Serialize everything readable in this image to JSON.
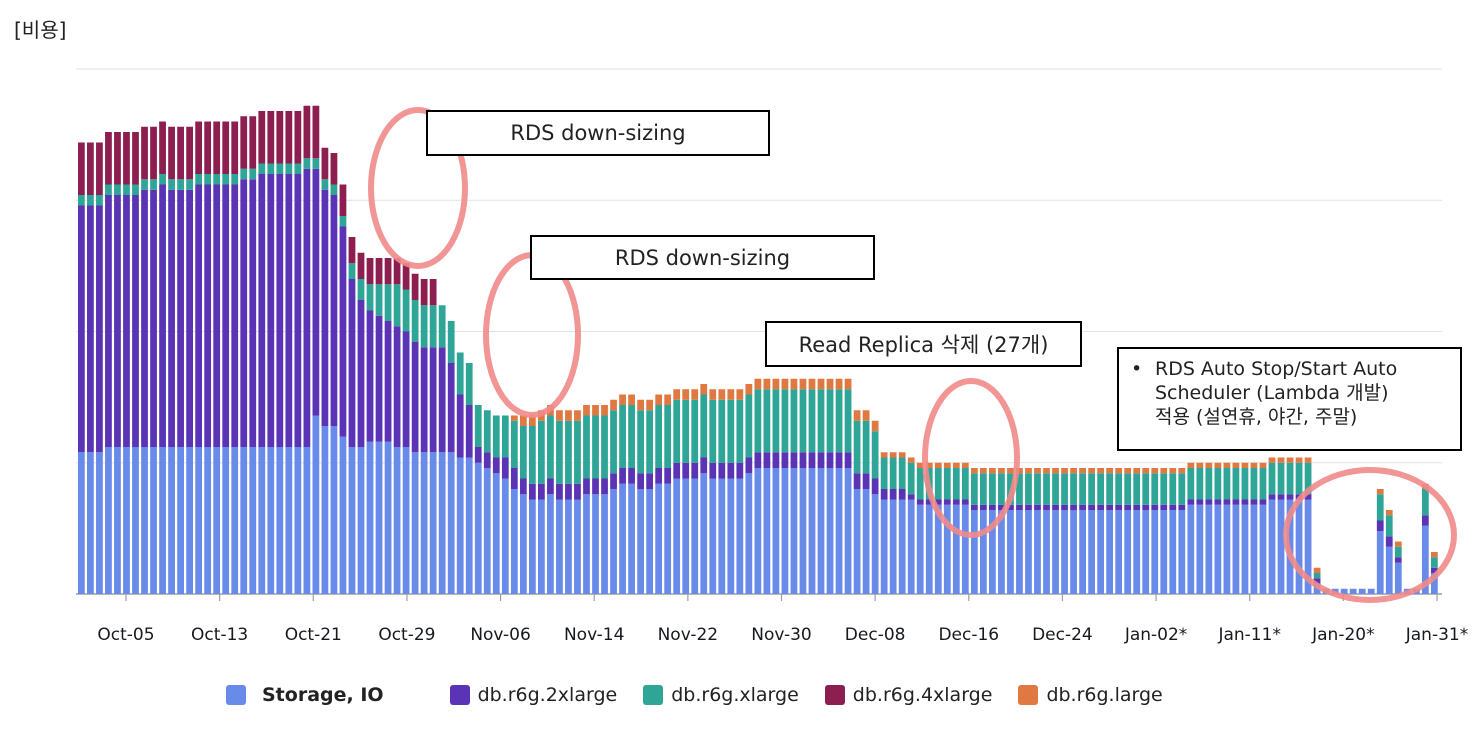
{
  "chart_data": {
    "type": "bar",
    "stacked": true,
    "title": "[비용]",
    "xlabel": "",
    "ylabel": "",
    "ylim": [
      0,
      100
    ],
    "grid": true,
    "legend_position": "bottom",
    "colors": {
      "storage": "#688ae8",
      "2xl": "#5a34b4",
      "xl": "#2ea597",
      "4xl": "#8c1f4f",
      "large": "#e07941",
      "circle": "#f08a8a"
    },
    "tick_labels": [
      "Oct-05",
      "Oct-13",
      "Oct-21",
      "Oct-29",
      "Nov-06",
      "Nov-14",
      "Nov-22",
      "Nov-30",
      "Dec-08",
      "Dec-16",
      "Dec-24",
      "Jan-02*",
      "Jan-11*",
      "Jan-20*",
      "Jan-31*"
    ],
    "legend": [
      {
        "key": "storage",
        "label": "Storage, IO"
      },
      {
        "key": "2xl",
        "label": "db.r6g.2xlarge"
      },
      {
        "key": "xl",
        "label": "db.r6g.xlarge"
      },
      {
        "key": "4xl",
        "label": "db.r6g.4xlarge"
      },
      {
        "key": "large",
        "label": "db.r6g.large"
      }
    ],
    "series": [
      {
        "key": "storage",
        "name": "Storage, IO",
        "values": [
          27,
          27,
          27,
          28,
          28,
          28,
          28,
          28,
          28,
          28,
          28,
          28,
          28,
          28,
          28,
          28,
          28,
          28,
          28,
          28,
          28,
          28,
          28,
          28,
          28,
          28,
          34,
          32,
          32,
          30,
          28,
          28,
          29,
          29,
          29,
          28,
          28,
          27,
          27,
          27,
          27,
          27,
          26,
          26,
          25,
          24,
          23,
          22,
          20,
          19,
          18,
          18,
          19,
          18,
          18,
          18,
          19,
          19,
          19,
          20,
          21,
          21,
          20,
          20,
          21,
          21,
          22,
          22,
          22,
          23,
          22,
          22,
          22,
          22,
          23,
          24,
          24,
          24,
          24,
          24,
          24,
          24,
          24,
          24,
          24,
          24,
          20,
          20,
          19,
          18,
          18,
          18,
          18,
          17,
          17,
          17,
          17,
          17,
          17,
          16,
          16,
          16,
          16,
          16,
          16,
          16,
          16,
          16,
          16,
          16,
          16,
          16,
          16,
          16,
          16,
          16,
          16,
          16,
          16,
          16,
          16,
          16,
          16,
          17,
          17,
          17,
          17,
          17,
          17,
          17,
          17,
          17,
          18,
          18,
          18,
          18,
          18,
          2,
          1,
          1,
          1,
          1,
          1,
          1,
          12,
          9,
          6,
          1,
          1,
          13,
          4
        ]
      },
      {
        "key": "2xl",
        "name": "db.r6g.2xlarge",
        "values": [
          47,
          47,
          47,
          48,
          48,
          48,
          48,
          49,
          49,
          50,
          49,
          49,
          49,
          50,
          50,
          50,
          50,
          50,
          51,
          51,
          52,
          52,
          52,
          52,
          52,
          53,
          47,
          45,
          44,
          40,
          32,
          28,
          25,
          24,
          23,
          23,
          22,
          21,
          20,
          20,
          20,
          17,
          12,
          10,
          3,
          3,
          3,
          4,
          4,
          3,
          3,
          3,
          3,
          3,
          3,
          3,
          3,
          3,
          3,
          3,
          3,
          3,
          3,
          3,
          3,
          3,
          3,
          3,
          3,
          3,
          3,
          3,
          3,
          3,
          3,
          3,
          3,
          3,
          3,
          3,
          3,
          3,
          3,
          3,
          3,
          3,
          3,
          3,
          3,
          2,
          2,
          2,
          1,
          1,
          1,
          1,
          1,
          1,
          1,
          1,
          1,
          1,
          1,
          1,
          1,
          1,
          1,
          1,
          1,
          1,
          1,
          1,
          1,
          1,
          1,
          1,
          1,
          1,
          1,
          1,
          1,
          1,
          1,
          1,
          1,
          1,
          1,
          1,
          1,
          1,
          1,
          1,
          1,
          1,
          1,
          1,
          1,
          1,
          0,
          0,
          0,
          0,
          0,
          0,
          2,
          2,
          1,
          0,
          0,
          2,
          1
        ]
      },
      {
        "key": "xl",
        "name": "db.r6g.xlarge",
        "values": [
          2,
          2,
          2,
          2,
          2,
          2,
          2,
          2,
          2,
          2,
          2,
          2,
          2,
          2,
          2,
          2,
          2,
          2,
          2,
          2,
          2,
          2,
          2,
          2,
          2,
          2,
          2,
          2,
          2,
          2,
          3,
          4,
          5,
          6,
          7,
          8,
          8,
          8,
          8,
          8,
          8,
          8,
          8,
          8,
          8,
          8,
          8,
          8,
          9,
          10,
          11,
          12,
          12,
          12,
          12,
          12,
          12,
          12,
          12,
          12,
          12,
          12,
          12,
          12,
          12,
          12,
          12,
          12,
          12,
          12,
          12,
          12,
          12,
          12,
          12,
          12,
          12,
          12,
          12,
          12,
          12,
          12,
          12,
          12,
          12,
          12,
          10,
          10,
          9,
          6,
          6,
          6,
          6,
          6,
          6,
          6,
          6,
          6,
          6,
          6,
          6,
          6,
          6,
          6,
          6,
          6,
          6,
          6,
          6,
          6,
          6,
          6,
          6,
          6,
          6,
          6,
          6,
          6,
          6,
          6,
          6,
          6,
          6,
          6,
          6,
          6,
          6,
          6,
          6,
          6,
          6,
          6,
          6,
          6,
          6,
          6,
          6,
          1,
          0,
          0,
          0,
          0,
          0,
          0,
          5,
          4,
          2,
          0,
          0,
          5,
          2
        ]
      },
      {
        "key": "4xl",
        "name": "db.r6g.4xlarge",
        "values": [
          10,
          10,
          10,
          10,
          10,
          10,
          10,
          10,
          10,
          10,
          10,
          10,
          10,
          10,
          10,
          10,
          10,
          10,
          10,
          10,
          10,
          10,
          10,
          10,
          10,
          10,
          10,
          6,
          6,
          6,
          5,
          5,
          5,
          5,
          5,
          5,
          5,
          5,
          5,
          5,
          0,
          0,
          0,
          0,
          0,
          0,
          0,
          0,
          0,
          0,
          0,
          0,
          0,
          0,
          0,
          0,
          0,
          0,
          0,
          0,
          0,
          0,
          0,
          0,
          0,
          0,
          0,
          0,
          0,
          0,
          0,
          0,
          0,
          0,
          0,
          0,
          0,
          0,
          0,
          0,
          0,
          0,
          0,
          0,
          0,
          0,
          0,
          0,
          0,
          0,
          0,
          0,
          0,
          0,
          0,
          0,
          0,
          0,
          0,
          0,
          0,
          0,
          0,
          0,
          0,
          0,
          0,
          0,
          0,
          0,
          0,
          0,
          0,
          0,
          0,
          0,
          0,
          0,
          0,
          0,
          0,
          0,
          0,
          0,
          0,
          0,
          0,
          0,
          0,
          0,
          0,
          0,
          0,
          0,
          0,
          0,
          0,
          0,
          0,
          0,
          0,
          0,
          0,
          0,
          0,
          0,
          0,
          0,
          0,
          0,
          0
        ]
      },
      {
        "key": "large",
        "name": "db.r6g.large",
        "values": [
          0,
          0,
          0,
          0,
          0,
          0,
          0,
          0,
          0,
          0,
          0,
          0,
          0,
          0,
          0,
          0,
          0,
          0,
          0,
          0,
          0,
          0,
          0,
          0,
          0,
          0,
          0,
          0,
          0,
          0,
          0,
          0,
          0,
          0,
          0,
          0,
          0,
          0,
          0,
          0,
          0,
          0,
          0,
          0,
          0,
          0,
          0,
          0,
          1,
          2,
          2,
          2,
          2,
          2,
          2,
          2,
          2,
          2,
          2,
          2,
          2,
          2,
          2,
          2,
          2,
          2,
          2,
          2,
          2,
          2,
          2,
          2,
          2,
          2,
          2,
          2,
          2,
          2,
          2,
          2,
          2,
          2,
          2,
          2,
          2,
          2,
          2,
          2,
          2,
          1,
          1,
          1,
          1,
          1,
          1,
          1,
          1,
          1,
          1,
          1,
          1,
          1,
          1,
          1,
          1,
          1,
          1,
          1,
          1,
          1,
          1,
          1,
          1,
          1,
          1,
          1,
          1,
          1,
          1,
          1,
          1,
          1,
          1,
          1,
          1,
          1,
          1,
          1,
          1,
          1,
          1,
          1,
          1,
          1,
          1,
          1,
          1,
          1,
          0,
          0,
          0,
          0,
          0,
          0,
          1,
          1,
          1,
          0,
          0,
          1,
          1
        ]
      }
    ],
    "annotations": [
      {
        "text": "RDS down-sizing"
      },
      {
        "text": "RDS down-sizing"
      },
      {
        "text": "Read  Replica  삭제  (27개)"
      },
      {
        "lines": [
          "RDS  Auto  Stop/Start  Auto",
          "Scheduler  (Lambda  개발)",
          "적용  (설연휴,  야간,  주말)"
        ]
      }
    ]
  }
}
